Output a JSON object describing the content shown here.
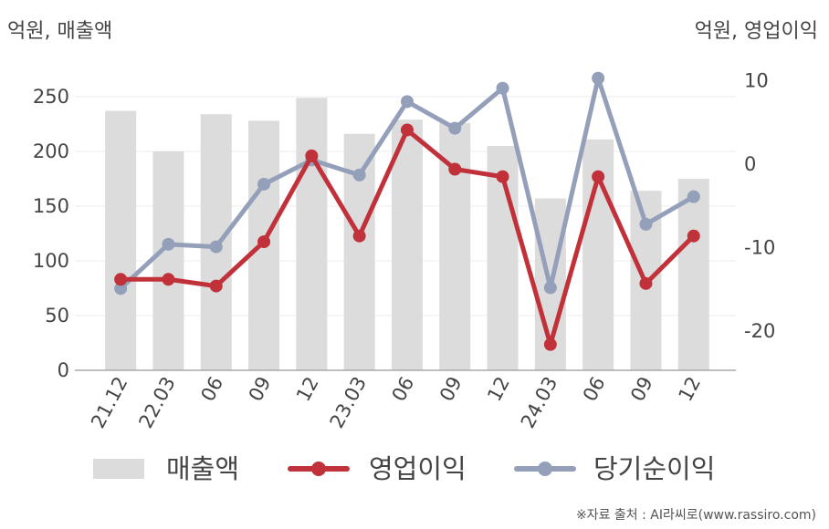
{
  "units": {
    "left": "억원, 매출액",
    "right": "억원, 영업이익"
  },
  "source": "※자료 출처 : AI라씨로(www.rassiro.com)",
  "colors": {
    "bar": "#dcdcdc",
    "operating": "#c1313a",
    "net": "#94a0ba",
    "axis": "#aaaaaa",
    "grid": "#eeeeee"
  },
  "chart_data": {
    "type": "bar+line",
    "categories": [
      "21.12",
      "22.03",
      "06",
      "09",
      "12",
      "23.03",
      "06",
      "09",
      "12",
      "24.03",
      "06",
      "09",
      "12"
    ],
    "y_left": {
      "ticks": [
        0,
        50,
        100,
        150,
        200,
        250
      ],
      "range": [
        0,
        270
      ]
    },
    "y_right": {
      "ticks": [
        10,
        0,
        -10,
        -20
      ],
      "range": [
        -25,
        11
      ]
    },
    "series": [
      {
        "name": "매출액",
        "type": "bar",
        "axis": "left",
        "values": [
          237,
          200,
          234,
          228,
          249,
          216,
          229,
          226,
          205,
          157,
          211,
          164,
          175
        ]
      },
      {
        "name": "영업이익",
        "type": "line",
        "axis": "right",
        "values": [
          -13.8,
          -13.8,
          -14.6,
          -9.3,
          1.0,
          -8.6,
          4.1,
          -0.6,
          -1.5,
          -21.6,
          -1.5,
          -14.3,
          -8.6
        ]
      },
      {
        "name": "당기순이익",
        "type": "line",
        "axis": "right",
        "values": [
          -14.9,
          -9.6,
          -9.9,
          -2.4,
          0.5,
          -1.3,
          7.5,
          4.3,
          9.1,
          -14.8,
          10.3,
          -7.2,
          -3.9
        ]
      }
    ],
    "legend": [
      "매출액",
      "영업이익",
      "당기순이익"
    ],
    "legend_position": "bottom",
    "grid": true
  }
}
